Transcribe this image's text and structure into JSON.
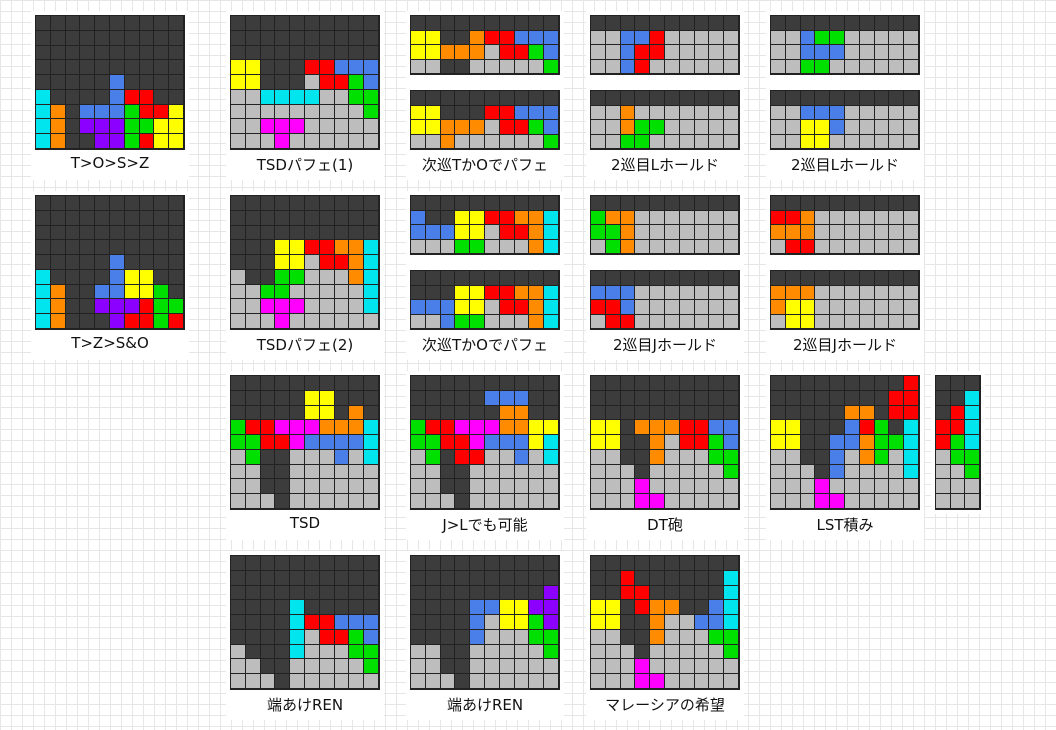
{
  "colors": {
    "X": "#3c3c3c",
    "G": "#bdbdbd",
    "C": "#00e5ee",
    "B": "#4a7ee8",
    "O": "#ff8c00",
    "Y": "#ffff00",
    "R": "#ff0000",
    "L": "#00e000",
    "P": "#ff00ff",
    "V": "#8b00ff"
  },
  "figures": [
    {
      "caption": "T>O>S>Z",
      "boards": [
        [
          "XXXXXXXXXX",
          "XXXXXXXXXX",
          "XXXXXXXXXX",
          "XXXXXXXXXX",
          "XXXXXBXXXX",
          "CXXXXBRRXX",
          "COXBBBLRRY",
          "COXVVVLLYY",
          "COXXVVLRYY"
        ]
      ]
    },
    {
      "caption": "TSDパフェ(1)",
      "boards": [
        [
          "XXXXXXXXXX",
          "XXXXXXXXXX",
          "XXXXXXXXXX",
          "YYXXXRRBBB",
          "YYXXXGRRLB",
          "GGCCCCGGLL",
          "GGGGGGGGGL",
          "GGPPPGGGGG",
          "GGGPGGGGGG"
        ]
      ]
    },
    {
      "caption": "次巡TかOでパフェ",
      "boards": [
        [
          "XXXXXXXXXX",
          "YYXXORRBBB",
          "YYOOOGRRLB",
          "GGXXGGGGGL"
        ],
        [
          "XXXXXXXXXX",
          "YYXXXRRBBB",
          "YYOOOGRRLB",
          "GGOGGGGGGL"
        ]
      ]
    },
    {
      "caption": "2巡目Lホールド",
      "boards": [
        [
          "XXXXXXXXXX",
          "GGBBRGGGGG",
          "GGBRRGGGGG",
          "GGBRGGGGGG"
        ],
        [
          "XXXXXXXXXX",
          "GGOGGGGGGG",
          "GGOLLGGGGG",
          "GGLLGGGGGG"
        ]
      ]
    },
    {
      "caption": "2巡目Lホールド",
      "boards": [
        [
          "XXXXXXXXXX",
          "GGBLLGGGGG",
          "GGBBBGGGGG",
          "GGLLGGGGGG"
        ],
        [
          "XXXXXXXXXX",
          "GGBBBGGGGG",
          "GGYYBGGGGG",
          "GGYYGGGGGG"
        ]
      ]
    },
    {
      "caption": "T>Z>S&O",
      "boards": [
        [
          "XXXXXXXXXX",
          "XXXXXXXXXX",
          "XXXXXXXXXX",
          "XXXXXXXXXX",
          "XXXXXBXXXX",
          "CXXXXBYYXX",
          "COXXBBYYLX",
          "COXXVVVRLL",
          "COXXXVRRLR"
        ]
      ]
    },
    {
      "caption": "TSDパフェ(2)",
      "boards": [
        [
          "XXXXXXXXXX",
          "XXXXXXXXXX",
          "XXXXXXXXXX",
          "XXXYYRROOC",
          "XXXYYGRROC",
          "GXXLLGGGOC",
          "GGLLGGGGGC",
          "GGPPPGGGGC",
          "GGGPGGGGGG"
        ]
      ]
    },
    {
      "caption": "次巡TかOでパフェ",
      "boards": [
        [
          "XXXXXXXXXX",
          "BXXYYRROOC",
          "BBBYYGRROC",
          "GGGLLGGGOC"
        ],
        [
          "XXXXXXXXXX",
          "XXXYYRROOC",
          "BBBYYGRROC",
          "GGBLLGGGOC"
        ]
      ]
    },
    {
      "caption": "2巡目Jホールド",
      "boards": [
        [
          "XXXXXXXXXX",
          "LOOGGGGGGG",
          "LLOGGGGGGG",
          "GLOGGGGGGG"
        ],
        [
          "XXXXXXXXXX",
          "BBBGGGGGGG",
          "RRBGGGGGGG",
          "GRRGGGGGGG"
        ]
      ]
    },
    {
      "caption": "2巡目Jホールド",
      "boards": [
        [
          "XXXXXXXXXX",
          "RROGGGGGGG",
          "OOOGGGGGGG",
          "GRRGGGGGGG"
        ],
        [
          "XXXXXXXXXX",
          "OOOGGGGGGG",
          "OYYGGGGGGG",
          "GYYGGGGGGG"
        ]
      ]
    },
    {
      "caption": "TSD",
      "boards": [
        [
          "XXXXXXXXXX",
          "XXXXXYYXXX",
          "XXXXXYYXOX",
          "LRRPPPOOOC",
          "LLRRPBBBBC",
          "GLXXGGGBGC",
          "GGXXGGGGGG",
          "GGXXGGGGGG",
          "GGGXGGGGGG"
        ]
      ]
    },
    {
      "caption": "J>Lでも可能",
      "boards": [
        [
          "XXXXXXXXXX",
          "XXXXXBBBXX",
          "XXXXXXOOXX",
          "LRRPPPOOYY",
          "LLRRPBBBYC",
          "GLXRRGGBGC",
          "GGXXGGGGGG",
          "GGXXGGGGGG",
          "GGGXGGGGGG"
        ]
      ]
    },
    {
      "caption": "DT砲",
      "boards": [
        [
          "XXXXXXXXXX",
          "XXXXXXXXXX",
          "XXXXXXXXXX",
          "YYXOOORRBB",
          "YYXXOGRRLB",
          "GGXXOGGGLL",
          "GGGXGGGGGL",
          "GGGPGGGGGG",
          "GGGPPGGGGG"
        ]
      ]
    },
    {
      "caption": "LST積み",
      "boards": [
        [
          "XXXXXXXXXR",
          "XXXXXXXXRR",
          "XXXXXOOXRR",
          "YYXXXBRLXC",
          "YYXXBBOLLC",
          "GGXXBGOLGC",
          "GGGXBGGGGC",
          "GGGPGGGGGG",
          "GGGPPGGGGG"
        ]
      ]
    },
    {
      "caption": "",
      "narrow": true,
      "boards": [
        [
          "XXX",
          "XXC",
          "XRC",
          "RRC",
          "RLC",
          "GLL",
          "GGL",
          "GGG",
          "GGG"
        ]
      ]
    },
    {
      "caption": "端あけREN",
      "boards": [
        [
          "XXXXXXXXXX",
          "XXXXXXXXXX",
          "XXXXXXXXXX",
          "XXXXCXXXXX",
          "XXXXCRRBBB",
          "XXXXCGRRLB",
          "GXXXCGGGLL",
          "GGXXGGGGGL",
          "GGGXGGGGGG"
        ]
      ]
    },
    {
      "caption": "端あけREN",
      "boards": [
        [
          "XXXXXXXXXX",
          "XXXXXXXXXX",
          "XXXXXXXXXV",
          "XXXXBBYYVV",
          "XXXXBGYYLV",
          "XXXXBGGGLL",
          "GGXXGGGGGL",
          "GGXXGGGGGG",
          "GGGXGGGGGG"
        ]
      ]
    },
    {
      "caption": "マレーシアの希望",
      "boards": [
        [
          "XXXXXXXXXX",
          "XXRXXXXXXC",
          "XXRRXXXXXC",
          "YYXROOXXBC",
          "YYXXOGGBBC",
          "GGXXOGGGLL",
          "GGGXGGGGGL",
          "GGGPGGGGGG",
          "GGGPPGGGGG"
        ]
      ]
    }
  ]
}
